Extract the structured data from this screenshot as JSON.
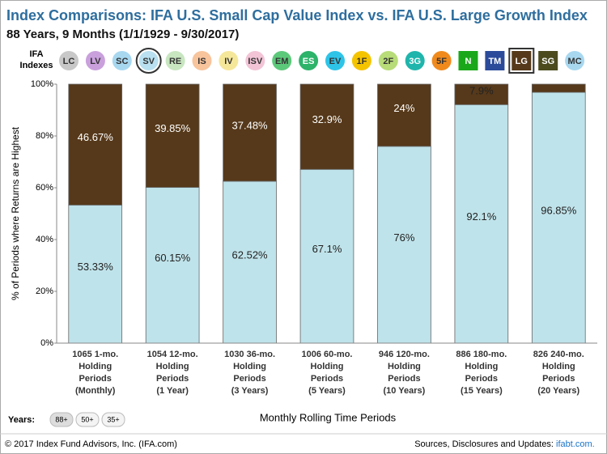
{
  "header": {
    "title": "Index Comparisons: IFA U.S. Small Cap Value Index vs. IFA U.S. Large Growth Index",
    "subtitle": "88 Years, 9 Months (1/1/1929 - 9/30/2017)",
    "indexes_label": [
      "IFA",
      "Indexes"
    ],
    "index_buttons": [
      {
        "label": "LC",
        "color": "#c8c8c8"
      },
      {
        "label": "LV",
        "color": "#c9a0dc"
      },
      {
        "label": "SC",
        "color": "#a8d8f0"
      },
      {
        "label": "SV",
        "color": "#b8e0f0",
        "selected": true
      },
      {
        "label": "RE",
        "color": "#c8e6c0"
      },
      {
        "label": "IS",
        "color": "#f7c49c"
      },
      {
        "label": "IV",
        "color": "#f5e79a"
      },
      {
        "label": "ISV",
        "color": "#f2c4d6"
      },
      {
        "label": "EM",
        "color": "#5cc97a"
      },
      {
        "label": "ES",
        "color": "#2db36a"
      },
      {
        "label": "EV",
        "color": "#2ec4e8"
      },
      {
        "label": "1F",
        "color": "#f5c400"
      },
      {
        "label": "2F",
        "color": "#b8dc78"
      },
      {
        "label": "3G",
        "color": "#1fb5ac"
      },
      {
        "label": "5F",
        "color": "#f08a1c"
      },
      {
        "label": "N",
        "color": "#1aa81a",
        "shape": "square"
      },
      {
        "label": "TM",
        "color": "#2b4a9a",
        "shape": "square"
      },
      {
        "label": "LG",
        "color": "#56391a",
        "shape": "square",
        "selected": true
      },
      {
        "label": "SG",
        "color": "#4b4b1e",
        "shape": "square"
      },
      {
        "label": "MC",
        "color": "#a8d8f0"
      }
    ]
  },
  "chart_data": {
    "type": "stacked_bar",
    "categories": [
      [
        "1065 1-mo.",
        "Holding",
        "Periods",
        "(Monthly)"
      ],
      [
        "1054 12-mo.",
        "Holding",
        "Periods",
        "(1 Year)"
      ],
      [
        "1030 36-mo.",
        "Holding",
        "Periods",
        "(3 Years)"
      ],
      [
        "1006 60-mo.",
        "Holding",
        "Periods",
        "(5 Years)"
      ],
      [
        "946 120-mo.",
        "Holding",
        "Periods",
        "(10 Years)"
      ],
      [
        "886 180-mo.",
        "Holding",
        "Periods",
        "(15 Years)"
      ],
      [
        "826 240-mo.",
        "Holding",
        "Periods",
        "(20 Years)"
      ]
    ],
    "series": [
      {
        "color": "#bfe3ea",
        "values": [
          53.33,
          60.15,
          62.52,
          67.1,
          76,
          92.1,
          96.85
        ],
        "value_labels": [
          "53.33%",
          "60.15%",
          "62.52%",
          "67.1%",
          "76%",
          "92.1%",
          "96.85%"
        ]
      },
      {
        "color": "#56391a",
        "values": [
          46.67,
          39.85,
          37.48,
          32.9,
          24,
          7.9,
          3.15
        ],
        "value_labels": [
          "46.67%",
          "39.85%",
          "37.48%",
          "32.9%",
          "24%",
          "7.9%",
          null
        ]
      }
    ],
    "ylim": [
      0,
      100
    ],
    "yticks": [
      {
        "value": 0,
        "label": "0%"
      },
      {
        "value": 20,
        "label": "20%"
      },
      {
        "value": 40,
        "label": "40%"
      },
      {
        "value": 60,
        "label": "60%"
      },
      {
        "value": 80,
        "label": "80%"
      },
      {
        "value": 100,
        "label": "100%"
      }
    ],
    "ylabel": "% of Periods where Returns are Highest",
    "xlabel": "Monthly Rolling Time Periods"
  },
  "years": {
    "label": "Years:",
    "buttons": [
      "88+",
      "50+",
      "35+"
    ]
  },
  "footer": {
    "copyright": "© 2017 Index Fund Advisors, Inc. (IFA.com)",
    "sources": "Sources, Disclosures and Updates:",
    "link": "ifabt.com."
  }
}
